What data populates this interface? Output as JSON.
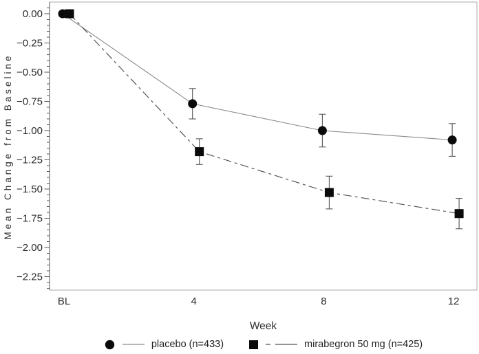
{
  "chart_data": {
    "type": "line",
    "title": "",
    "xlabel": "Week",
    "ylabel": "Mean Change from Baseline",
    "x_categories": [
      "BL",
      "4",
      "8",
      "12"
    ],
    "x_weeks": [
      0,
      4,
      8,
      12
    ],
    "ylim": [
      -2.35,
      0.1
    ],
    "grid": false,
    "legend_position": "bottom",
    "yticks": [
      {
        "value": 0.0,
        "label": "0.00"
      },
      {
        "value": -0.25,
        "label": "−0.25"
      },
      {
        "value": -0.5,
        "label": "−0.50"
      },
      {
        "value": -0.75,
        "label": "−0.75"
      },
      {
        "value": -1.0,
        "label": "−1.00"
      },
      {
        "value": -1.25,
        "label": "−1.25"
      },
      {
        "value": -1.5,
        "label": "−1.50"
      },
      {
        "value": -1.75,
        "label": "−1.75"
      },
      {
        "value": -2.0,
        "label": "−2.00"
      },
      {
        "value": -2.25,
        "label": "−2.25"
      }
    ],
    "minor_tick_step": 0.05,
    "series": [
      {
        "name": "placebo (n=433)",
        "marker": "circle",
        "line": "solid",
        "values": [
          0.0,
          -0.77,
          -1.0,
          -1.08
        ],
        "stderr": [
          0,
          0.13,
          0.14,
          0.14
        ]
      },
      {
        "name": "mirabegron 50 mg (n=425)",
        "marker": "square",
        "line": "dash-dot",
        "values": [
          0.0,
          -1.18,
          -1.53,
          -1.71
        ],
        "stderr": [
          0,
          0.11,
          0.14,
          0.13
        ]
      }
    ]
  },
  "colors": {
    "background": "#ffffff",
    "text": "#2b2b2b",
    "marker": "#0a0a0a",
    "placebo_line": "#8a8a8a",
    "mirabegron_line": "#555555",
    "error_bar": "#555555",
    "frame": "#aaaaaa",
    "axis": "#555555"
  }
}
